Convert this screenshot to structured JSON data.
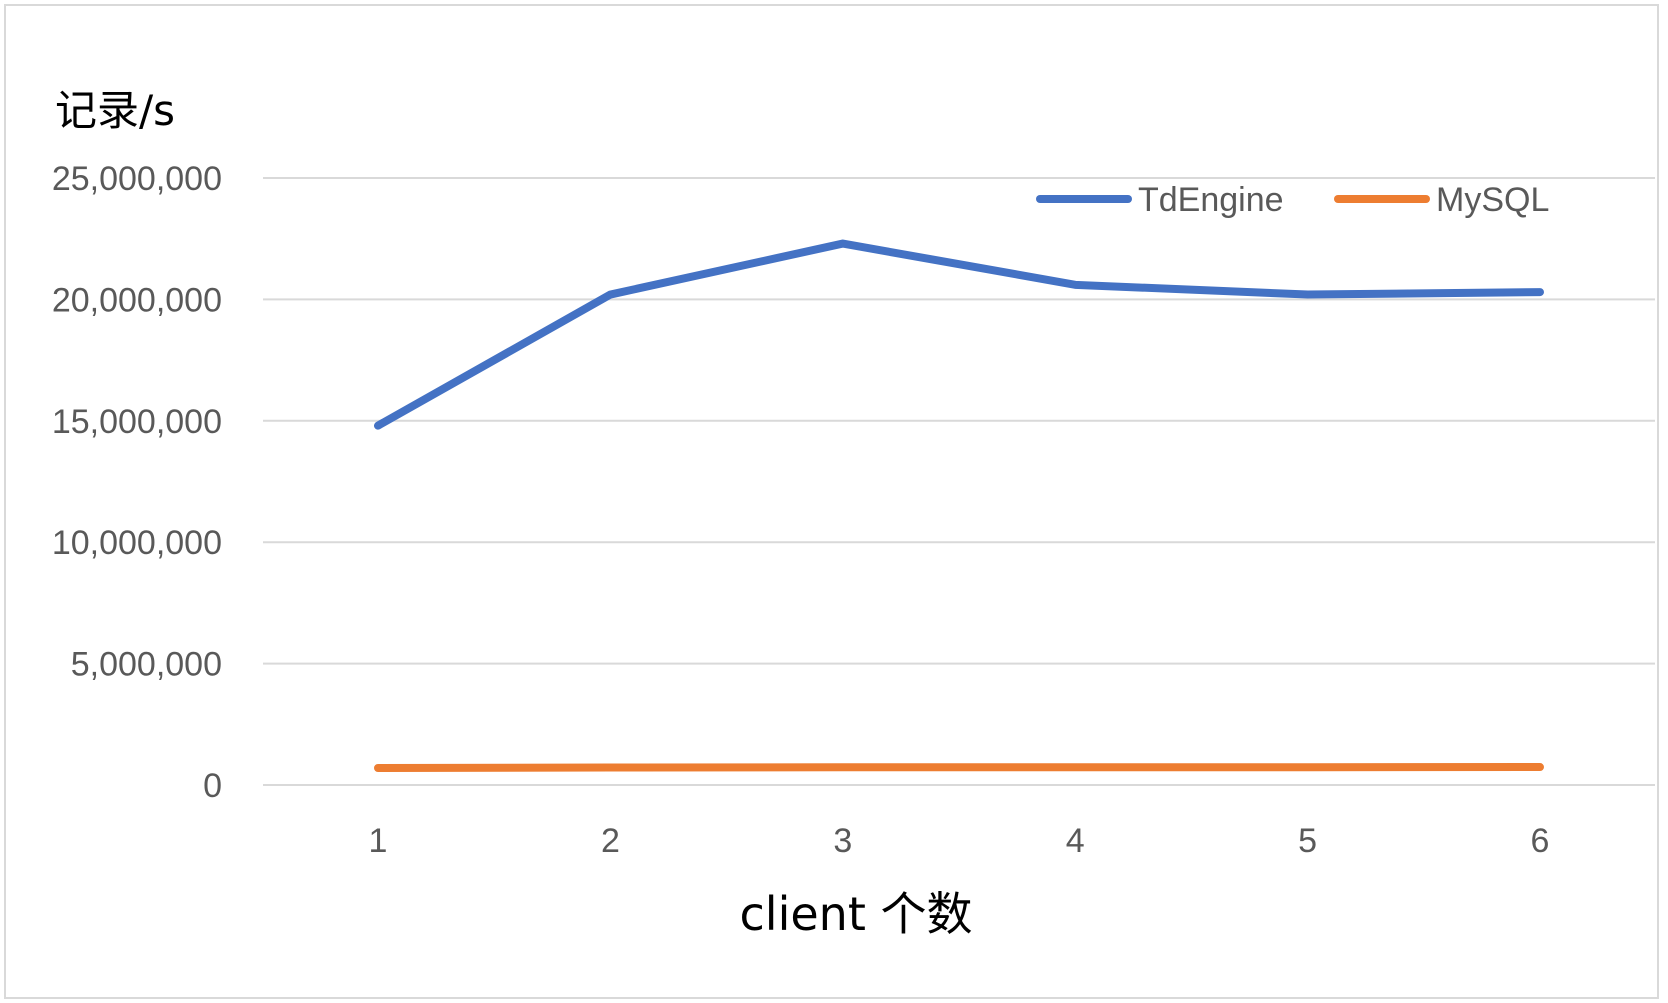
{
  "chart_data": {
    "type": "line",
    "ylabel": "记录/s",
    "xlabel": "client 个数",
    "categories": [
      "1",
      "2",
      "3",
      "4",
      "5",
      "6"
    ],
    "ylim": [
      0,
      25000000
    ],
    "yticks": [
      0,
      5000000,
      10000000,
      15000000,
      20000000,
      25000000
    ],
    "ytick_labels": [
      "0",
      "5,000,000",
      "10,000,000",
      "15,000,000",
      "20,000,000",
      "25,000,000"
    ],
    "grid": true,
    "legend": "top-right",
    "series": [
      {
        "name": "TdEngine",
        "color": "#4472c4",
        "values": [
          14800000,
          20200000,
          22300000,
          20600000,
          20200000,
          20300000
        ]
      },
      {
        "name": "MySQL",
        "color": "#ed7d31",
        "values": [
          700000,
          720000,
          730000,
          730000,
          730000,
          740000
        ]
      }
    ]
  }
}
